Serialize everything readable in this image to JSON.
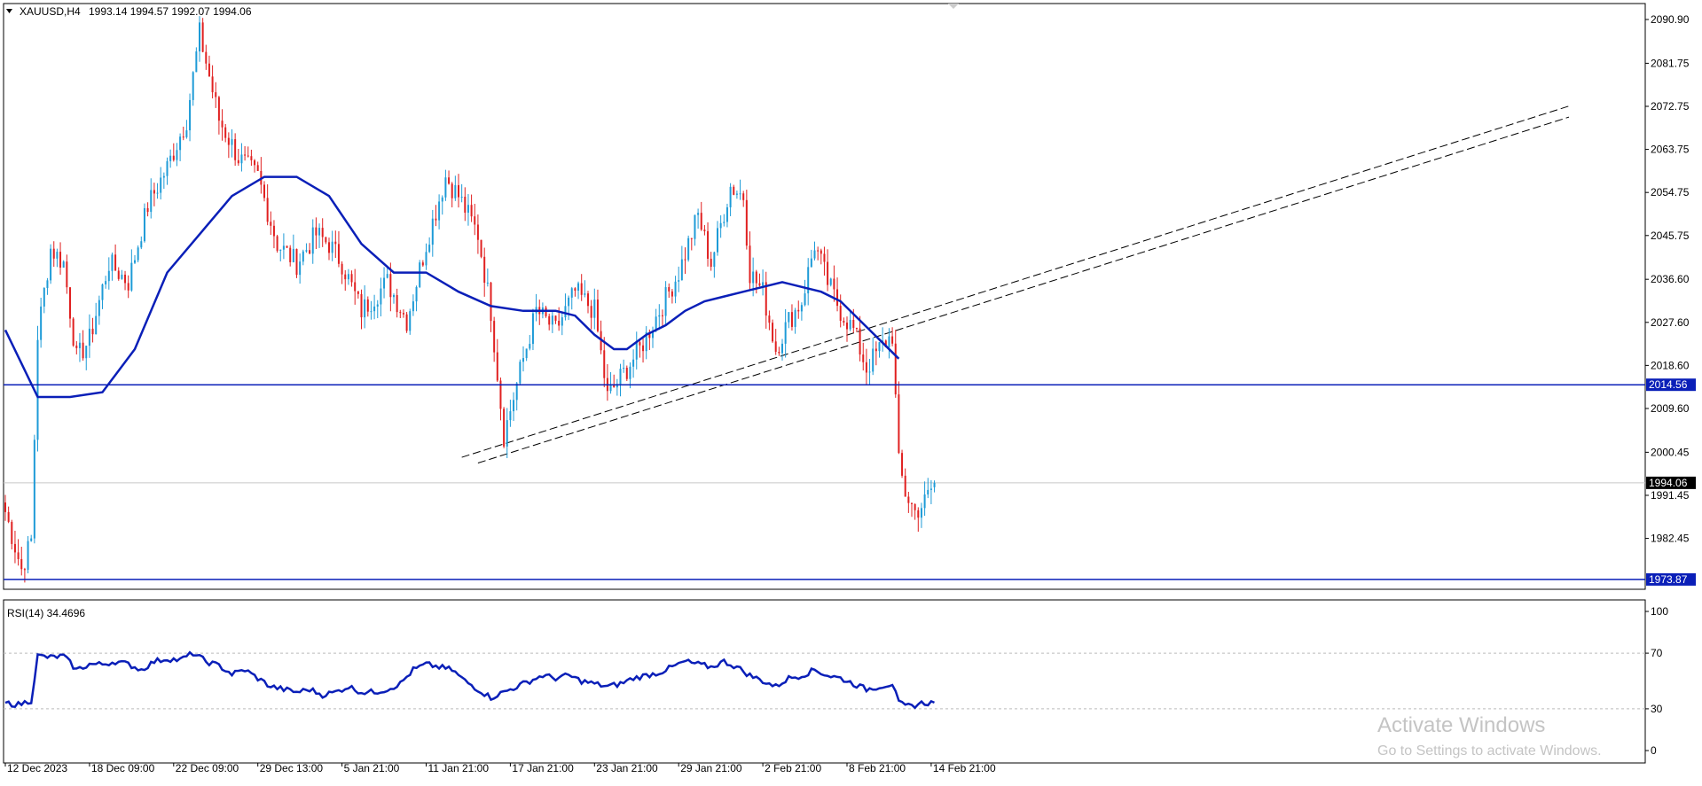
{
  "header": {
    "symbol": "XAUUSD,H4",
    "ohlc": "1993.14 1994.57 1992.07 1994.06",
    "rsi_label": "RSI(14) 34.4696"
  },
  "watermark": {
    "line1": "Activate Windows",
    "line2": "Go to Settings to activate Windows."
  },
  "colors": {
    "bull": "#1e9bd7",
    "bear": "#e02020",
    "ma": "#0a1fb8",
    "hline": "#0a1fb8",
    "rsi": "#0a1fb8",
    "grid_dash": "#bbbbbb",
    "trend": "#000000"
  },
  "chart_data": [
    {
      "type": "candlestick",
      "title": "XAUUSD,H4",
      "ylim": [
        1970.5,
        2094.0
      ],
      "y_ticks": [
        "2090.90",
        "2081.75",
        "2072.75",
        "2063.75",
        "2054.75",
        "2045.75",
        "2036.60",
        "2027.60",
        "2018.60",
        "2009.60",
        "2000.45",
        "1991.45",
        "1982.45"
      ],
      "x_ticks": [
        "12 Dec 2023",
        "18 Dec 09:00",
        "22 Dec 09:00",
        "29 Dec 13:00",
        "5 Jan 21:00",
        "11 Jan 21:00",
        "17 Jan 21:00",
        "23 Jan 21:00",
        "29 Jan 21:00",
        "2 Feb 21:00",
        "8 Feb 21:00",
        "14 Feb 21:00"
      ],
      "x_tick_bars": [
        0,
        26,
        52,
        78,
        104,
        130,
        156,
        182,
        208,
        234,
        260,
        286
      ],
      "total_bars": 288,
      "close_path": [
        [
          0,
          1988
        ],
        [
          5,
          1976
        ],
        [
          8,
          1982
        ],
        [
          10,
          2025
        ],
        [
          14,
          2043
        ],
        [
          18,
          2040
        ],
        [
          22,
          2020
        ],
        [
          26,
          2024
        ],
        [
          32,
          2040
        ],
        [
          38,
          2036
        ],
        [
          44,
          2052
        ],
        [
          50,
          2060
        ],
        [
          56,
          2070
        ],
        [
          60,
          2088
        ],
        [
          66,
          2070
        ],
        [
          72,
          2062
        ],
        [
          78,
          2058
        ],
        [
          84,
          2044
        ],
        [
          90,
          2040
        ],
        [
          96,
          2046
        ],
        [
          100,
          2044
        ],
        [
          104,
          2040
        ],
        [
          110,
          2030
        ],
        [
          118,
          2036
        ],
        [
          124,
          2028
        ],
        [
          130,
          2044
        ],
        [
          136,
          2058
        ],
        [
          140,
          2054
        ],
        [
          146,
          2046
        ],
        [
          150,
          2030
        ],
        [
          154,
          2004
        ],
        [
          160,
          2020
        ],
        [
          164,
          2030
        ],
        [
          170,
          2026
        ],
        [
          176,
          2034
        ],
        [
          182,
          2030
        ],
        [
          186,
          2012
        ],
        [
          190,
          2016
        ],
        [
          196,
          2022
        ],
        [
          202,
          2030
        ],
        [
          208,
          2038
        ],
        [
          214,
          2050
        ],
        [
          218,
          2040
        ],
        [
          224,
          2056
        ],
        [
          228,
          2054
        ],
        [
          230,
          2038
        ],
        [
          234,
          2034
        ],
        [
          238,
          2022
        ],
        [
          242,
          2028
        ],
        [
          246,
          2032
        ],
        [
          250,
          2044
        ],
        [
          254,
          2036
        ],
        [
          258,
          2030
        ],
        [
          262,
          2026
        ],
        [
          266,
          2018
        ],
        [
          270,
          2022
        ],
        [
          274,
          2025
        ],
        [
          276,
          1998
        ],
        [
          278,
          1992
        ],
        [
          281,
          1988
        ],
        [
          284,
          1990
        ],
        [
          287,
          1994.06
        ]
      ],
      "last_candle": {
        "open": 1993.14,
        "high": 1994.57,
        "low": 1992.07,
        "close": 1994.06
      },
      "series": [
        {
          "name": "MA",
          "values": [
            [
              0,
              2026
            ],
            [
              10,
              2012
            ],
            [
              20,
              2012
            ],
            [
              30,
              2013
            ],
            [
              40,
              2022
            ],
            [
              50,
              2038
            ],
            [
              60,
              2046
            ],
            [
              70,
              2054
            ],
            [
              80,
              2058
            ],
            [
              90,
              2058
            ],
            [
              100,
              2054
            ],
            [
              110,
              2044
            ],
            [
              120,
              2038
            ],
            [
              130,
              2038
            ],
            [
              140,
              2034
            ],
            [
              150,
              2031
            ],
            [
              160,
              2030
            ],
            [
              170,
              2030
            ],
            [
              176,
              2029
            ],
            [
              182,
              2025
            ],
            [
              188,
              2022
            ],
            [
              192,
              2022
            ],
            [
              198,
              2025
            ],
            [
              204,
              2027
            ],
            [
              210,
              2030
            ],
            [
              216,
              2032
            ],
            [
              222,
              2033
            ],
            [
              228,
              2034
            ],
            [
              234,
              2035
            ],
            [
              240,
              2036
            ],
            [
              246,
              2035
            ],
            [
              252,
              2034
            ],
            [
              258,
              2032
            ],
            [
              264,
              2028
            ],
            [
              270,
              2024
            ],
            [
              276,
              2020
            ]
          ]
        }
      ],
      "horizontal_levels": [
        {
          "price": 2014.56,
          "label": "2014.56"
        },
        {
          "price": 1973.87,
          "label": "1973.87"
        }
      ],
      "current_price": {
        "price": 1994.06,
        "label": "1994.06"
      },
      "trend_lines": [
        {
          "from": [
            141,
            1999.4
          ],
          "to": [
            483,
            2072.8
          ]
        },
        {
          "from": [
            146,
            1998.2
          ],
          "to": [
            483,
            2070.5
          ]
        }
      ]
    },
    {
      "type": "line",
      "title": "RSI(14) 34.4696",
      "ylim": [
        0,
        100
      ],
      "y_ticks": [
        "100",
        "70",
        "30",
        "0"
      ],
      "levels": [
        70,
        30
      ],
      "series": [
        {
          "name": "RSI(14)",
          "values": [
            [
              0,
              34
            ],
            [
              4,
              33
            ],
            [
              8,
              36
            ],
            [
              10,
              68
            ],
            [
              14,
              67
            ],
            [
              18,
              68
            ],
            [
              22,
              58
            ],
            [
              26,
              62
            ],
            [
              30,
              62
            ],
            [
              34,
              64
            ],
            [
              38,
              62
            ],
            [
              42,
              58
            ],
            [
              46,
              64
            ],
            [
              50,
              66
            ],
            [
              54,
              65
            ],
            [
              58,
              70
            ],
            [
              62,
              64
            ],
            [
              66,
              61
            ],
            [
              70,
              55
            ],
            [
              74,
              58
            ],
            [
              78,
              52
            ],
            [
              82,
              46
            ],
            [
              86,
              44
            ],
            [
              90,
              42
            ],
            [
              94,
              44
            ],
            [
              98,
              40
            ],
            [
              102,
              42
            ],
            [
              106,
              46
            ],
            [
              110,
              42
            ],
            [
              114,
              42
            ],
            [
              118,
              44
            ],
            [
              122,
              48
            ],
            [
              126,
              58
            ],
            [
              130,
              62
            ],
            [
              134,
              60
            ],
            [
              138,
              58
            ],
            [
              142,
              50
            ],
            [
              146,
              44
            ],
            [
              150,
              38
            ],
            [
              154,
              42
            ],
            [
              158,
              46
            ],
            [
              162,
              50
            ],
            [
              166,
              54
            ],
            [
              170,
              52
            ],
            [
              174,
              54
            ],
            [
              178,
              50
            ],
            [
              182,
              48
            ],
            [
              186,
              46
            ],
            [
              190,
              48
            ],
            [
              194,
              52
            ],
            [
              198,
              54
            ],
            [
              202,
              56
            ],
            [
              206,
              60
            ],
            [
              210,
              64
            ],
            [
              214,
              62
            ],
            [
              218,
              60
            ],
            [
              222,
              64
            ],
            [
              226,
              60
            ],
            [
              230,
              54
            ],
            [
              234,
              50
            ],
            [
              238,
              46
            ],
            [
              242,
              52
            ],
            [
              246,
              54
            ],
            [
              250,
              58
            ],
            [
              254,
              54
            ],
            [
              258,
              52
            ],
            [
              262,
              48
            ],
            [
              266,
              44
            ],
            [
              270,
              46
            ],
            [
              274,
              48
            ],
            [
              276,
              34
            ],
            [
              278,
              32
            ],
            [
              280,
              32
            ],
            [
              283,
              34
            ],
            [
              287,
              34.47
            ]
          ]
        }
      ]
    }
  ]
}
